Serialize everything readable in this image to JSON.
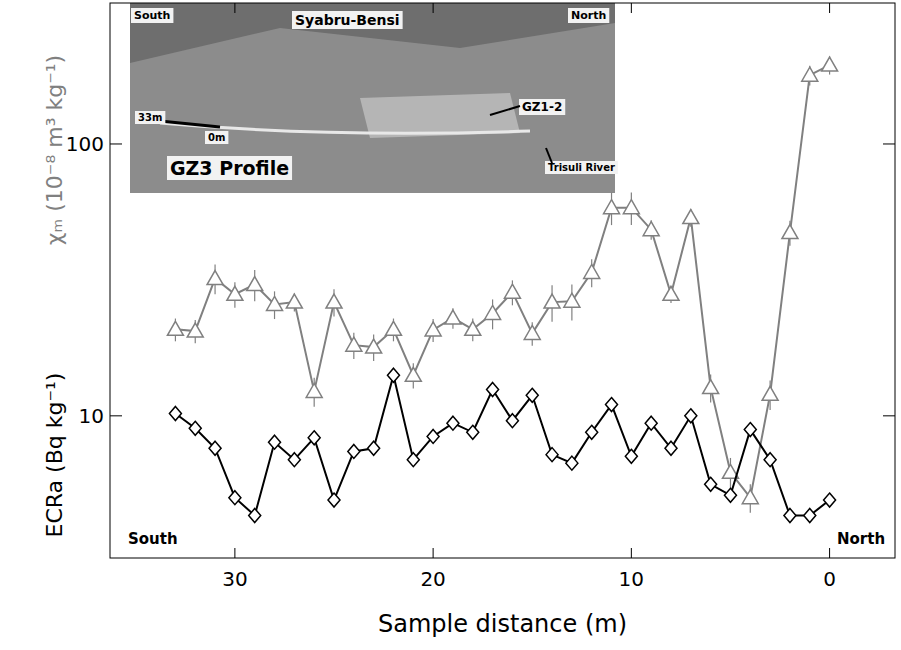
{
  "chart_data": {
    "type": "line",
    "x_label": "Sample distance (m)",
    "x": [
      33,
      32,
      31,
      30,
      29,
      28,
      27,
      26,
      25,
      24,
      23,
      22,
      21,
      20,
      19,
      18,
      17,
      16,
      15,
      14,
      13,
      12,
      11,
      10,
      9,
      8,
      7,
      6,
      5,
      4,
      3,
      2,
      1,
      0
    ],
    "xlim": [
      36.3,
      -3.3
    ],
    "xticks": [
      30,
      20,
      10,
      0
    ],
    "ylim": [
      3,
      330
    ],
    "yticks": [
      10,
      100
    ],
    "log": "y",
    "series": [
      {
        "name": "χₘ (10⁻⁸ m³ kg⁻¹)",
        "color": "#808080",
        "marker": "triangle",
        "line_style": "solid",
        "values": [
          20.8,
          20.5,
          32.0,
          28.0,
          30.4,
          25.7,
          26.2,
          12.3,
          26.2,
          18.2,
          17.9,
          20.8,
          14.1,
          20.7,
          22.9,
          20.8,
          23.8,
          28.5,
          20.1,
          26.2,
          26.4,
          33.7,
          58.3,
          58.3,
          48.4,
          28.0,
          53.6,
          12.7,
          6.2,
          5.0,
          12.0,
          47.2,
          179,
          195
        ],
        "errors": [
          2,
          2,
          4,
          3,
          4,
          3,
          2,
          1.5,
          3,
          2,
          2,
          2,
          1.5,
          2,
          2,
          2,
          3,
          3,
          2,
          4,
          4,
          4,
          8,
          8,
          4,
          2,
          4,
          1.5,
          0.8,
          0.6,
          1.5,
          5,
          15,
          15
        ]
      },
      {
        "name": "ECRa (Bq kg⁻¹)",
        "color": "#000000",
        "marker": "diamond",
        "line_style": "solid",
        "values": [
          10.2,
          9.0,
          7.6,
          5.0,
          4.3,
          8.0,
          6.9,
          8.3,
          4.9,
          7.4,
          7.6,
          14.1,
          6.9,
          8.4,
          9.4,
          8.7,
          12.5,
          9.6,
          11.9,
          7.2,
          6.7,
          8.7,
          11.0,
          7.1,
          9.4,
          7.6,
          10.0,
          5.6,
          5.1,
          8.9,
          6.9,
          4.3,
          4.3,
          4.9
        ]
      }
    ],
    "annotations": [
      "South",
      "North",
      "Syabru-Bensi",
      "33m",
      "0m",
      "GZ1-2",
      "GZ3 Profile",
      "Trisuli River",
      "South",
      "North"
    ]
  }
}
